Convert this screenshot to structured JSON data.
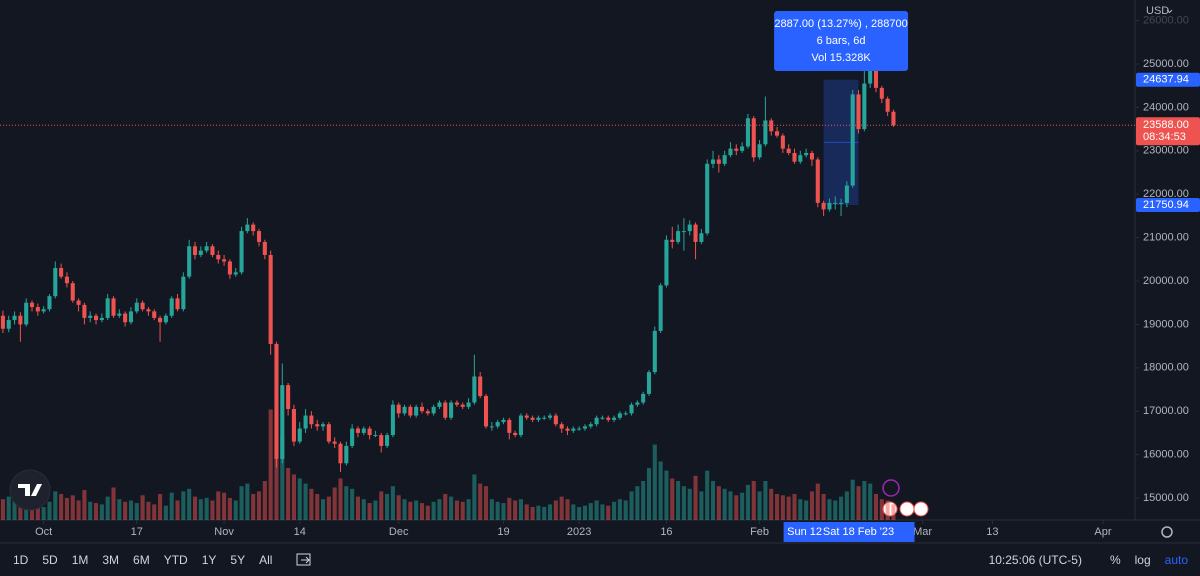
{
  "chart_data": {
    "type": "candlestick",
    "currency": "USD",
    "log": false,
    "grid": false,
    "up_color": "#26a69a",
    "down_color": "#ef5350",
    "xlim": [
      -0.5,
      194.5
    ],
    "xticks": [
      {
        "value": 7,
        "label": "Oct"
      },
      {
        "value": 23,
        "label": "17"
      },
      {
        "value": 38,
        "label": "Nov"
      },
      {
        "value": 51,
        "label": "14"
      },
      {
        "value": 68,
        "label": "Dec"
      },
      {
        "value": 86,
        "label": "19"
      },
      {
        "value": 99,
        "label": "2023"
      },
      {
        "value": 114,
        "label": "16"
      },
      {
        "value": 130,
        "label": "Feb"
      },
      {
        "value": 158,
        "label": "Mar"
      },
      {
        "value": 170,
        "label": "13"
      },
      {
        "value": 189,
        "label": "Apr"
      }
    ],
    "ylim": [
      14493,
      26475
    ],
    "yticks": [
      {
        "value": 15000,
        "label": "15000.00"
      },
      {
        "value": 16000,
        "label": "16000.00"
      },
      {
        "value": 17000,
        "label": "17000.00"
      },
      {
        "value": 18000,
        "label": "18000.00"
      },
      {
        "value": 19000,
        "label": "19000.00"
      },
      {
        "value": 20000,
        "label": "20000.00"
      },
      {
        "value": 21000,
        "label": "21000.00"
      },
      {
        "value": 22000,
        "label": "22000.00"
      },
      {
        "value": 23000,
        "label": "23000.00"
      },
      {
        "value": 24000,
        "label": "24000.00"
      },
      {
        "value": 25000,
        "label": "25000.00"
      },
      {
        "value": 26000,
        "label": "26000.00"
      }
    ],
    "volume_lim": [
      0,
      12
    ],
    "ohlc": [
      [
        19200,
        19320,
        18800,
        18900
      ],
      [
        18900,
        19200,
        18820,
        19100
      ],
      [
        19100,
        19300,
        19000,
        19200
      ],
      [
        19200,
        19280,
        18600,
        19000
      ],
      [
        19000,
        19600,
        18950,
        19500
      ],
      [
        19500,
        19550,
        19300,
        19400
      ],
      [
        19400,
        19480,
        19200,
        19300
      ],
      [
        19300,
        19420,
        19250,
        19350
      ],
      [
        19350,
        19700,
        19300,
        19650
      ],
      [
        19650,
        20450,
        19600,
        20300
      ],
      [
        20300,
        20400,
        20050,
        20100
      ],
      [
        20100,
        20200,
        19850,
        19950
      ],
      [
        19950,
        20000,
        19500,
        19550
      ],
      [
        19550,
        19600,
        19300,
        19450
      ],
      [
        19450,
        19500,
        19000,
        19150
      ],
      [
        19150,
        19300,
        19050,
        19200
      ],
      [
        19200,
        19250,
        19000,
        19100
      ],
      [
        19100,
        19250,
        19050,
        19150
      ],
      [
        19150,
        19700,
        19100,
        19600
      ],
      [
        19600,
        19650,
        19150,
        19200
      ],
      [
        19200,
        19350,
        19150,
        19250
      ],
      [
        19250,
        19300,
        18950,
        19050
      ],
      [
        19050,
        19400,
        19000,
        19300
      ],
      [
        19300,
        19600,
        19250,
        19500
      ],
      [
        19500,
        19550,
        19300,
        19350
      ],
      [
        19350,
        19400,
        19200,
        19300
      ],
      [
        19300,
        19350,
        19100,
        19150
      ],
      [
        19150,
        19200,
        18600,
        19050
      ],
      [
        19050,
        19250,
        19000,
        19200
      ],
      [
        19200,
        19650,
        19150,
        19600
      ],
      [
        19600,
        19700,
        19300,
        19350
      ],
      [
        19350,
        20200,
        19300,
        20100
      ],
      [
        20100,
        20950,
        20050,
        20800
      ],
      [
        20800,
        20900,
        20500,
        20600
      ],
      [
        20600,
        20800,
        20550,
        20700
      ],
      [
        20700,
        20900,
        20650,
        20800
      ],
      [
        20800,
        20850,
        20550,
        20600
      ],
      [
        20600,
        20700,
        20400,
        20500
      ],
      [
        20500,
        20600,
        20350,
        20450
      ],
      [
        20450,
        20500,
        20050,
        20150
      ],
      [
        20150,
        20300,
        20100,
        20200
      ],
      [
        20200,
        21250,
        20150,
        21150
      ],
      [
        21150,
        21450,
        21100,
        21300
      ],
      [
        21300,
        21350,
        21050,
        21150
      ],
      [
        21150,
        21200,
        20800,
        20900
      ],
      [
        20900,
        20950,
        20500,
        20600
      ],
      [
        20600,
        20700,
        18300,
        18550
      ],
      [
        18550,
        18600,
        15700,
        15900
      ],
      [
        15900,
        18100,
        15800,
        17600
      ],
      [
        17600,
        17650,
        16900,
        17050
      ],
      [
        17050,
        17150,
        16200,
        16300
      ],
      [
        16300,
        16750,
        16250,
        16600
      ],
      [
        16600,
        17050,
        16500,
        16900
      ],
      [
        16900,
        17000,
        16600,
        16700
      ],
      [
        16700,
        16800,
        16550,
        16650
      ],
      [
        16650,
        16750,
        16550,
        16700
      ],
      [
        16700,
        16750,
        16250,
        16300
      ],
      [
        16300,
        16400,
        16150,
        16250
      ],
      [
        16250,
        16300,
        15600,
        15800
      ],
      [
        15800,
        16300,
        15750,
        16200
      ],
      [
        16200,
        16700,
        16150,
        16600
      ],
      [
        16600,
        16650,
        16400,
        16500
      ],
      [
        16500,
        16650,
        16450,
        16600
      ],
      [
        16600,
        16650,
        16350,
        16450
      ],
      [
        16450,
        16550,
        16400,
        16450
      ],
      [
        16450,
        16500,
        16050,
        16200
      ],
      [
        16200,
        16500,
        16150,
        16450
      ],
      [
        16450,
        17250,
        16400,
        17150
      ],
      [
        17150,
        17200,
        16850,
        16950
      ],
      [
        16950,
        17150,
        16900,
        17100
      ],
      [
        17100,
        17150,
        16850,
        16900
      ],
      [
        16900,
        17150,
        16850,
        17100
      ],
      [
        17100,
        17200,
        16950,
        17000
      ],
      [
        17000,
        17050,
        16900,
        16950
      ],
      [
        16950,
        17150,
        16900,
        17100
      ],
      [
        17100,
        17250,
        17050,
        17200
      ],
      [
        17200,
        17250,
        16800,
        16850
      ],
      [
        16850,
        17250,
        16800,
        17200
      ],
      [
        17200,
        17250,
        17100,
        17150
      ],
      [
        17150,
        17200,
        17050,
        17100
      ],
      [
        17100,
        17300,
        17050,
        17200
      ],
      [
        17200,
        18300,
        17150,
        17800
      ],
      [
        17800,
        17900,
        17300,
        17350
      ],
      [
        17350,
        17400,
        16600,
        16650
      ],
      [
        16650,
        16750,
        16550,
        16650
      ],
      [
        16650,
        16800,
        16600,
        16750
      ],
      [
        16750,
        16850,
        16700,
        16800
      ],
      [
        16800,
        16850,
        16350,
        16500
      ],
      [
        16500,
        16550,
        16400,
        16450
      ],
      [
        16450,
        16950,
        16400,
        16900
      ],
      [
        16900,
        16950,
        16800,
        16850
      ],
      [
        16850,
        16900,
        16750,
        16800
      ],
      [
        16800,
        16900,
        16750,
        16850
      ],
      [
        16850,
        16900,
        16800,
        16850
      ],
      [
        16850,
        16950,
        16800,
        16900
      ],
      [
        16900,
        16950,
        16650,
        16700
      ],
      [
        16700,
        16750,
        16500,
        16600
      ],
      [
        16600,
        16650,
        16450,
        16550
      ],
      [
        16550,
        16650,
        16500,
        16600
      ],
      [
        16600,
        16650,
        16550,
        16600
      ],
      [
        16600,
        16700,
        16550,
        16650
      ],
      [
        16650,
        16750,
        16600,
        16700
      ],
      [
        16700,
        16900,
        16650,
        16850
      ],
      [
        16850,
        16900,
        16800,
        16850
      ],
      [
        16850,
        16900,
        16750,
        16800
      ],
      [
        16800,
        16900,
        16750,
        16850
      ],
      [
        16850,
        17000,
        16800,
        16950
      ],
      [
        16950,
        17000,
        16900,
        16950
      ],
      [
        16950,
        17200,
        16900,
        17150
      ],
      [
        17150,
        17250,
        17100,
        17200
      ],
      [
        17200,
        17450,
        17150,
        17400
      ],
      [
        17400,
        17950,
        17350,
        17900
      ],
      [
        17900,
        18950,
        17850,
        18850
      ],
      [
        18850,
        19950,
        18800,
        19900
      ],
      [
        19900,
        21050,
        19850,
        20950
      ],
      [
        20950,
        21250,
        20750,
        20900
      ],
      [
        20900,
        21300,
        20850,
        21150
      ],
      [
        21150,
        21450,
        20700,
        21150
      ],
      [
        21150,
        21400,
        21050,
        21300
      ],
      [
        21300,
        21350,
        20500,
        20900
      ],
      [
        20900,
        21200,
        20850,
        21100
      ],
      [
        21100,
        22800,
        21050,
        22700
      ],
      [
        22700,
        23000,
        22600,
        22800
      ],
      [
        22800,
        22900,
        22500,
        22700
      ],
      [
        22700,
        23000,
        22650,
        22900
      ],
      [
        22900,
        23200,
        22850,
        23050
      ],
      [
        23050,
        23150,
        22900,
        23000
      ],
      [
        23000,
        23200,
        22950,
        23100
      ],
      [
        23100,
        23850,
        23050,
        23750
      ],
      [
        23750,
        23800,
        22750,
        22850
      ],
      [
        22850,
        23250,
        22800,
        23150
      ],
      [
        23150,
        24250,
        23100,
        23700
      ],
      [
        23700,
        23750,
        23350,
        23450
      ],
      [
        23450,
        23550,
        23300,
        23350
      ],
      [
        23350,
        23400,
        22950,
        23050
      ],
      [
        23050,
        23150,
        22900,
        22950
      ],
      [
        22950,
        23050,
        22700,
        22750
      ],
      [
        22750,
        23000,
        22700,
        22900
      ],
      [
        22900,
        23050,
        22850,
        22950
      ],
      [
        22950,
        23000,
        22650,
        22800
      ],
      [
        22800,
        22850,
        21700,
        21800
      ],
      [
        21800,
        21850,
        21500,
        21650
      ],
      [
        21650,
        21900,
        21600,
        21800
      ],
      [
        21800,
        21950,
        21650,
        21800
      ],
      [
        21800,
        21900,
        21500,
        21800
      ],
      [
        21800,
        22300,
        21700,
        22200
      ],
      [
        22200,
        24400,
        22150,
        24300
      ],
      [
        24300,
        24400,
        23400,
        23500
      ],
      [
        23500,
        24900,
        23450,
        24550
      ],
      [
        24550,
        25250,
        24450,
        24850
      ],
      [
        24850,
        24950,
        24350,
        24450
      ],
      [
        24450,
        24500,
        24100,
        24200
      ],
      [
        24200,
        24250,
        23800,
        23900
      ],
      [
        23900,
        23950,
        23550,
        23588
      ]
    ],
    "volume": [
      1.6,
      1.8,
      2.1,
      2.4,
      1.9,
      1.2,
      1.3,
      1.0,
      1.4,
      2.2,
      2.0,
      1.7,
      1.9,
      1.5,
      2.3,
      1.4,
      1.3,
      1.2,
      1.8,
      2.5,
      1.6,
      1.4,
      1.5,
      1.3,
      1.9,
      1.4,
      1.2,
      2.0,
      1.1,
      2.1,
      1.5,
      2.2,
      2.4,
      1.8,
      1.6,
      1.7,
      1.5,
      2.2,
      2.1,
      1.7,
      1.5,
      2.6,
      2.8,
      2.0,
      2.2,
      3.0,
      8.5,
      10.0,
      6.5,
      4.0,
      3.5,
      3.2,
      2.8,
      2.4,
      2.0,
      1.6,
      1.8,
      2.5,
      3.2,
      2.6,
      2.4,
      1.8,
      1.6,
      1.3,
      1.5,
      2.2,
      2.0,
      2.6,
      1.9,
      1.6,
      1.4,
      1.5,
      1.3,
      1.1,
      1.4,
      1.6,
      2.0,
      1.8,
      1.5,
      1.4,
      1.6,
      3.5,
      2.8,
      2.6,
      1.6,
      1.4,
      1.3,
      1.7,
      1.5,
      1.6,
      1.2,
      1.0,
      1.1,
      1.0,
      1.2,
      1.5,
      1.8,
      1.6,
      1.2,
      1.0,
      1.1,
      1.3,
      1.5,
      1.2,
      1.1,
      1.4,
      1.6,
      1.5,
      2.2,
      2.6,
      3.0,
      4.0,
      5.8,
      4.5,
      3.8,
      3.2,
      3.0,
      2.6,
      2.4,
      3.4,
      2.2,
      3.8,
      3.0,
      2.6,
      2.4,
      2.2,
      1.9,
      2.1,
      2.7,
      3.0,
      2.2,
      3.0,
      2.4,
      2.0,
      1.9,
      1.8,
      2.0,
      1.6,
      1.5,
      2.2,
      2.8,
      2.0,
      1.6,
      1.5,
      1.8,
      2.2,
      3.1,
      2.6,
      3.0,
      2.8,
      2.0,
      1.6,
      1.5,
      1.2
    ],
    "last_price": {
      "value": 23588,
      "label": "23588.00"
    },
    "countdown": "08:34:53",
    "measure": {
      "start": 141,
      "end": 147,
      "from": {
        "value": 21750.94,
        "label": "21750.94"
      },
      "to": {
        "value": 24637.94,
        "label": "24637.94"
      },
      "lines": [
        "2887.00 (13.27%) , 288700",
        "6 bars, 6d",
        "Vol 15.328K"
      ],
      "start_label": "Sun 12",
      "end_label": "Sat 18 Feb '23"
    },
    "toolbar": {
      "ranges": [
        "1D",
        "5D",
        "1M",
        "3M",
        "6M",
        "YTD",
        "1Y",
        "5Y",
        "All"
      ],
      "time": "10:25:06 (UTC-5)",
      "options": [
        "%",
        "log",
        "auto"
      ]
    }
  }
}
